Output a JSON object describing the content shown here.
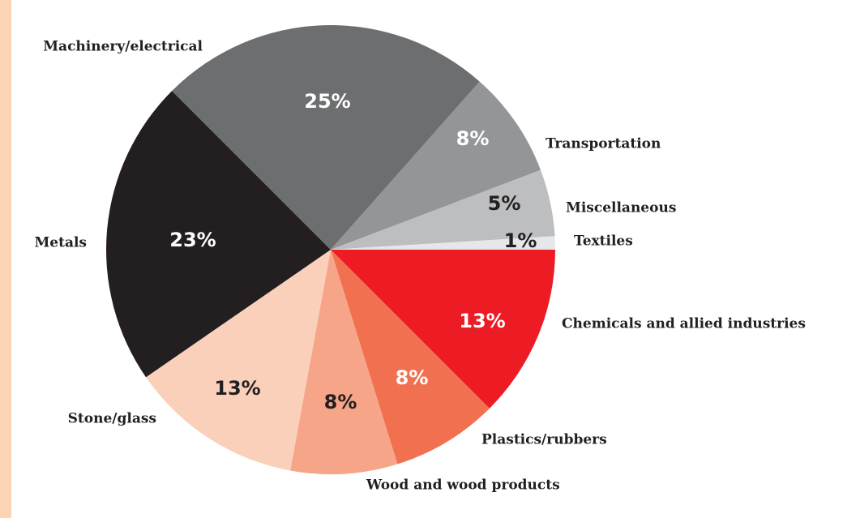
{
  "chart_data": {
    "type": "pie",
    "categories": [
      "Chemicals and allied industries",
      "Plastics/rubbers",
      "Wood and wood products",
      "Stone/glass",
      "Metals",
      "Machinery/electrical",
      "Transportation",
      "Miscellaneous",
      "Textiles"
    ],
    "values": [
      13,
      8,
      8,
      13,
      23,
      25,
      8,
      5,
      1
    ],
    "value_labels": [
      "13%",
      "8%",
      "8%",
      "13%",
      "23%",
      "25%",
      "8%",
      "5%",
      "1%"
    ],
    "colors": [
      "#ed1c24",
      "#f07050",
      "#f6a588",
      "#fbd0bb",
      "#231f20",
      "#6d6e70",
      "#939598",
      "#bcbec0",
      "#e6e7e8"
    ]
  }
}
